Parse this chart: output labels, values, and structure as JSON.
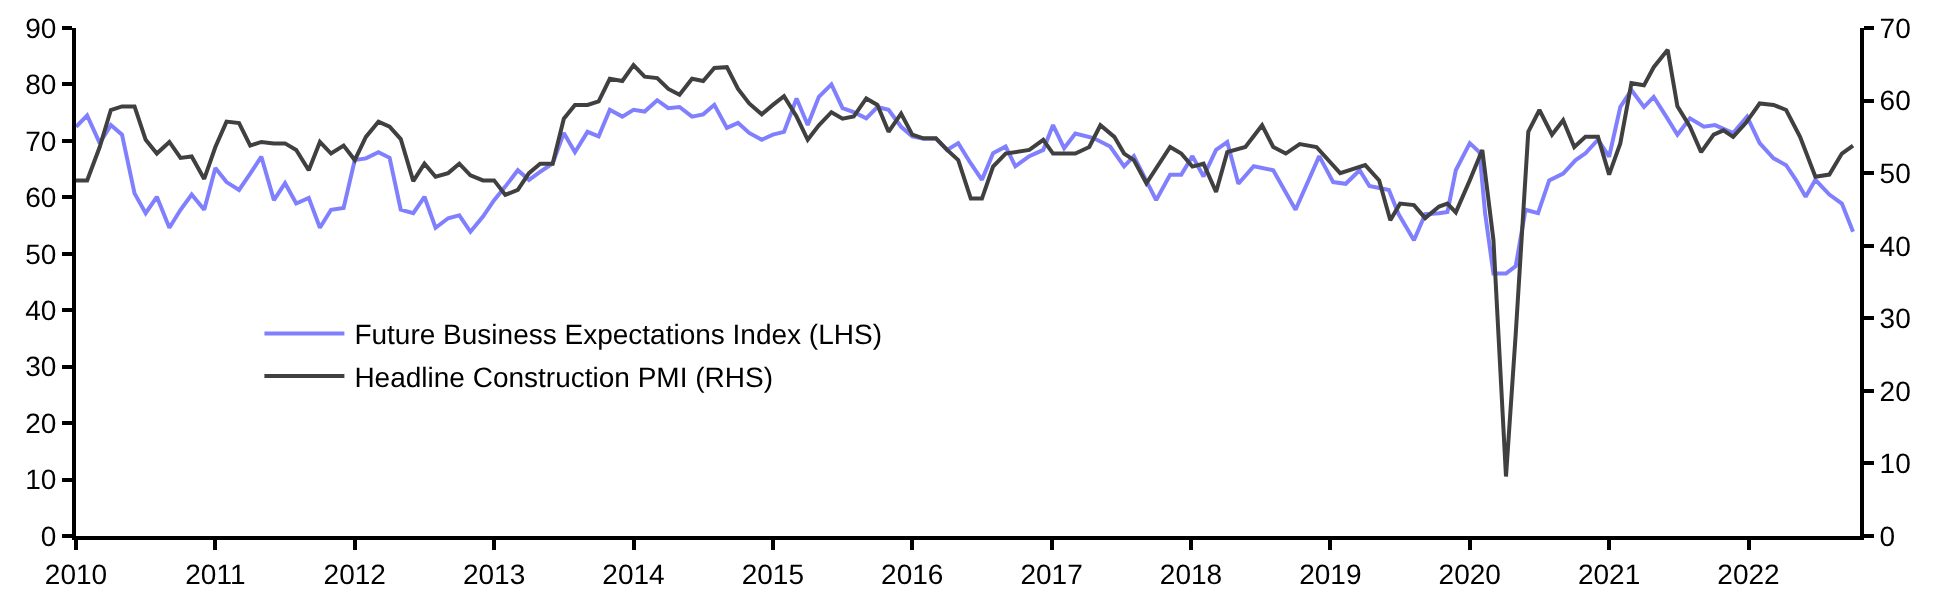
{
  "chart_data": {
    "type": "line",
    "xlim": [
      2010,
      2022.8
    ],
    "xticks": [
      2010,
      2011,
      2012,
      2013,
      2014,
      2015,
      2016,
      2017,
      2018,
      2019,
      2020,
      2021,
      2022
    ],
    "ylim": [
      0,
      90
    ],
    "yticks": [
      0,
      10,
      20,
      30,
      40,
      50,
      60,
      70,
      80,
      90
    ],
    "y2lim": [
      0,
      70
    ],
    "y2ticks": [
      0,
      10,
      20,
      30,
      40,
      50,
      60,
      70
    ],
    "grid": false,
    "legend": "bottom left",
    "marker": "none",
    "line_style": "solid",
    "series": [
      {
        "name": "Future Business Expectations Index (LHS)",
        "color": "#8080ff",
        "x": [
          2010,
          2010.08,
          2010.17,
          2010.25,
          2010.33,
          2010.42,
          2010.5,
          2010.58,
          2010.67,
          2010.75,
          2010.83,
          2010.92,
          2011,
          2011.08,
          2011.17,
          2011.25,
          2011.33,
          2011.42,
          2011.5,
          2011.58,
          2011.67,
          2011.75,
          2011.83,
          2011.92,
          2012,
          2012.08,
          2012.17,
          2012.25,
          2012.33,
          2012.42,
          2012.5,
          2012.58,
          2012.67,
          2012.75,
          2012.83,
          2012.92,
          2013,
          2013.08,
          2013.17,
          2013.25,
          2013.33,
          2013.42,
          2013.5,
          2013.58,
          2013.67,
          2013.75,
          2013.83,
          2013.92,
          2014,
          2014.08,
          2014.17,
          2014.25,
          2014.33,
          2014.42,
          2014.5,
          2014.58,
          2014.67,
          2014.75,
          2014.83,
          2014.92,
          2015,
          2015.08,
          2015.17,
          2015.25,
          2015.33,
          2015.42,
          2015.5,
          2015.58,
          2015.67,
          2015.75,
          2015.83,
          2015.92,
          2016,
          2016.08,
          2016.17,
          2016.25,
          2016.33,
          2016.42,
          2016.5,
          2016.58,
          2016.67,
          2016.74,
          2016.84,
          2016.94,
          2017.01,
          2017.09,
          2017.17,
          2017.3,
          2017.42,
          2017.52,
          2017.59,
          2017.75,
          2017.85,
          2017.93,
          2018.01,
          2018.09,
          2018.18,
          2018.26,
          2018.34,
          2018.45,
          2018.59,
          2018.75,
          2018.92,
          2019.02,
          2019.11,
          2019.21,
          2019.28,
          2019.42,
          2019.49,
          2019.6,
          2019.68,
          2019.78,
          2019.84,
          2019.9,
          2020,
          2020.07,
          2020.11,
          2020.17,
          2020.26,
          2020.33,
          2020.4,
          2020.49,
          2020.57,
          2020.67,
          2020.76,
          2020.83,
          2020.92,
          2021,
          2021.08,
          2021.16,
          2021.25,
          2021.32,
          2021.41,
          2021.49,
          2021.58,
          2021.68,
          2021.76,
          2021.89,
          2021.99,
          2022.08,
          2022.18,
          2022.27,
          2022.34,
          2022.41,
          2022.48,
          2022.58,
          2022.67,
          2022.75
        ],
        "values": [
          72.5,
          74.5,
          69.6,
          72.8,
          71.1,
          60.7,
          57.2,
          60.1,
          54.6,
          57.8,
          60.5,
          57.8,
          65.2,
          62.7,
          61.3,
          64.2,
          67.2,
          59.5,
          62.5,
          58.9,
          59.9,
          54.6,
          57.8,
          58.1,
          66.6,
          66.9,
          68,
          67,
          57.8,
          57.2,
          60.1,
          54.6,
          56.3,
          56.8,
          53.9,
          56.6,
          59.5,
          61.9,
          64.8,
          63.1,
          64.5,
          66,
          71.4,
          68,
          71.6,
          70.8,
          75.5,
          74.3,
          75.5,
          75.2,
          77.2,
          75.8,
          76,
          74.3,
          74.7,
          76.4,
          72.3,
          73.2,
          71.4,
          70.2,
          71.1,
          71.6,
          77.5,
          72.8,
          77.8,
          80,
          75.8,
          75.1,
          74,
          76,
          75.5,
          72.5,
          70.8,
          70.4,
          70.4,
          68.4,
          69.6,
          66,
          63.1,
          67.8,
          69,
          65.5,
          67.3,
          68.4,
          72.8,
          68.7,
          71.3,
          70.5,
          69,
          65.5,
          67.3,
          59.5,
          64,
          64,
          67.3,
          63.7,
          68.4,
          69.8,
          62.4,
          65.5,
          64.8,
          57.8,
          67.3,
          62.7,
          62.4,
          64.8,
          62,
          61.3,
          57,
          52.4,
          57,
          57.2,
          57.4,
          64.8,
          69.6,
          68,
          57.2,
          46.5,
          46.5,
          47.8,
          57.8,
          57.2,
          63,
          64.2,
          66.6,
          67.8,
          70.2,
          67.2,
          76,
          79,
          76,
          77.8,
          74.3,
          71.1,
          74,
          72.5,
          72.8,
          71.4,
          74.3,
          69.6,
          66.9,
          65.7,
          63.1,
          60.1,
          63.1,
          60.5,
          58.9,
          53.9
        ]
      },
      {
        "name": "Headline Construction PMI (RHS)",
        "color": "#404040",
        "axis": "y2",
        "x": [
          2010,
          2010.08,
          2010.17,
          2010.25,
          2010.33,
          2010.42,
          2010.5,
          2010.58,
          2010.67,
          2010.75,
          2010.83,
          2010.92,
          2011,
          2011.08,
          2011.17,
          2011.25,
          2011.33,
          2011.42,
          2011.5,
          2011.58,
          2011.67,
          2011.75,
          2011.83,
          2011.92,
          2012,
          2012.08,
          2012.17,
          2012.25,
          2012.33,
          2012.42,
          2012.5,
          2012.58,
          2012.67,
          2012.75,
          2012.83,
          2012.92,
          2013,
          2013.08,
          2013.17,
          2013.25,
          2013.33,
          2013.42,
          2013.5,
          2013.58,
          2013.67,
          2013.75,
          2013.83,
          2013.92,
          2014,
          2014.08,
          2014.17,
          2014.25,
          2014.33,
          2014.42,
          2014.5,
          2014.58,
          2014.67,
          2014.75,
          2014.83,
          2014.92,
          2015,
          2015.08,
          2015.17,
          2015.25,
          2015.33,
          2015.42,
          2015.5,
          2015.58,
          2015.67,
          2015.75,
          2015.83,
          2015.92,
          2016,
          2016.08,
          2016.17,
          2016.25,
          2016.33,
          2016.42,
          2016.5,
          2016.58,
          2016.67,
          2016.84,
          2016.94,
          2017.01,
          2017.17,
          2017.27,
          2017.35,
          2017.45,
          2017.52,
          2017.59,
          2017.68,
          2017.85,
          2017.93,
          2018.01,
          2018.09,
          2018.18,
          2018.26,
          2018.39,
          2018.51,
          2018.59,
          2018.68,
          2018.78,
          2018.9,
          2019.07,
          2019.25,
          2019.35,
          2019.43,
          2019.5,
          2019.6,
          2019.68,
          2019.78,
          2019.84,
          2019.9,
          2020,
          2020.09,
          2020.17,
          2020.26,
          2020.33,
          2020.42,
          2020.5,
          2020.59,
          2020.67,
          2020.75,
          2020.83,
          2020.92,
          2021,
          2021.08,
          2021.16,
          2021.25,
          2021.32,
          2021.42,
          2021.49,
          2021.58,
          2021.66,
          2021.75,
          2021.82,
          2021.89,
          2021.98,
          2022.08,
          2022.18,
          2022.27,
          2022.37,
          2022.48,
          2022.58,
          2022.67,
          2022.75
        ],
        "values": [
          49,
          49,
          53.6,
          58.7,
          59.2,
          59.2,
          54.6,
          52.7,
          54.3,
          52.1,
          52.3,
          49.2,
          53.6,
          57.1,
          56.9,
          53.8,
          54.3,
          54.1,
          54.1,
          53.2,
          50.4,
          54.3,
          52.7,
          53.8,
          51.8,
          55,
          57.1,
          56.4,
          54.7,
          48.9,
          51.3,
          49.5,
          50,
          51.3,
          49.7,
          49,
          49,
          47,
          47.7,
          50,
          51.3,
          51.3,
          57.5,
          59.4,
          59.4,
          59.9,
          63,
          62.7,
          64.9,
          63.3,
          63.1,
          61.6,
          60.8,
          63,
          62.7,
          64.5,
          64.6,
          61.6,
          59.6,
          58.1,
          59.4,
          60.6,
          57.8,
          54.6,
          56.6,
          58.4,
          57.5,
          57.8,
          60.3,
          59.4,
          55.7,
          58.2,
          55.3,
          54.8,
          54.8,
          53.2,
          51.8,
          46.5,
          46.5,
          50.9,
          52.7,
          53.2,
          54.6,
          52.7,
          52.7,
          53.6,
          56.6,
          55,
          52.7,
          51.8,
          48.6,
          53.6,
          52.7,
          50.9,
          51.3,
          47.4,
          52.9,
          53.6,
          56.6,
          53.6,
          52.7,
          54,
          53.6,
          50,
          51.1,
          49,
          43.5,
          45.8,
          45.6,
          43.8,
          45.4,
          45.8,
          44.6,
          49,
          53.2,
          40.8,
          8.2,
          27.9,
          55.7,
          58.7,
          55.3,
          57.3,
          53.6,
          55,
          55,
          49.8,
          54.1,
          62.4,
          62.1,
          64.6,
          67,
          59.2,
          56.4,
          52.9,
          55.3,
          55.9,
          55,
          56.9,
          59.6,
          59.4,
          58.7,
          55,
          49.5,
          49.8,
          52.7,
          53.8
        ]
      }
    ]
  }
}
